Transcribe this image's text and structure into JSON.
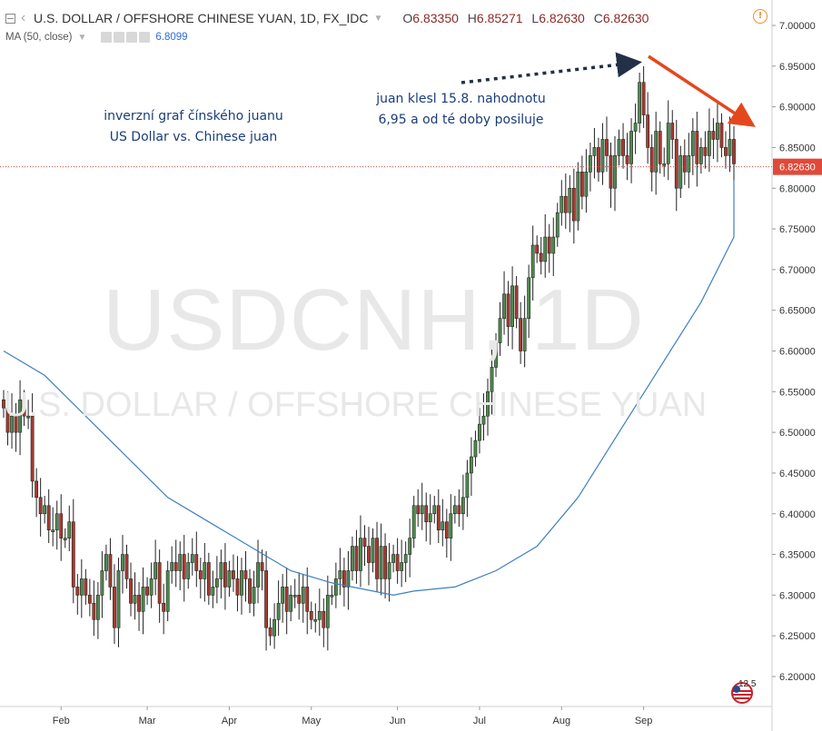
{
  "header": {
    "symbol_title": "U.S. DOLLAR / OFFSHORE CHINESE YUAN, 1D, FX_IDC",
    "ohlc": [
      {
        "label": "O",
        "value": "6.83350"
      },
      {
        "label": "H",
        "value": "6.85271"
      },
      {
        "label": "L",
        "value": "6.82630"
      },
      {
        "label": "C",
        "value": "6.82630"
      }
    ],
    "ma_label": "MA (50, close)",
    "ma_value": "6.8099",
    "info_icon": "info-circle-icon"
  },
  "watermark": {
    "big": "USDCNH, 1D",
    "small": "U.S. DOLLAR / OFFSHORE CHINESE YUAN"
  },
  "annotations": {
    "note_left_line1": "inverzní graf čínského juanu",
    "note_left_line2": "US Dollar vs. Chinese juan",
    "note_right_line1": "juan klesl 15.8. nahodnotu",
    "note_right_line2": "6,95 a od té doby posiluje"
  },
  "logo_text": "12 5",
  "colors": {
    "up": "#4f8a4f",
    "down": "#a93a2f",
    "ma_line": "#3e7fc1",
    "last_price_bg": "#e0493a",
    "arrow_red": "#e5471c",
    "arrow_dark": "#233047",
    "note_text": "#1a3d7a"
  },
  "chart_data": {
    "type": "candlestick",
    "title": "USDCNH, 1D",
    "ylim": [
      6.18,
      7.01
    ],
    "y_ticks": [
      "7.00000",
      "6.95000",
      "6.90000",
      "6.85000",
      "6.80000",
      "6.75000",
      "6.70000",
      "6.65000",
      "6.60000",
      "6.55000",
      "6.50000",
      "6.45000",
      "6.40000",
      "6.35000",
      "6.30000",
      "6.25000",
      "6.20000"
    ],
    "x_labels": [
      "Feb",
      "Mar",
      "Apr",
      "May",
      "Jun",
      "Jul",
      "Aug",
      "Sep"
    ],
    "last_price": "6.82630",
    "closes": [
      6.53,
      6.5,
      6.52,
      6.5,
      6.54,
      6.52,
      6.52,
      6.44,
      6.42,
      6.4,
      6.41,
      6.38,
      6.38,
      6.4,
      6.37,
      6.37,
      6.39,
      6.31,
      6.3,
      6.32,
      6.3,
      6.29,
      6.27,
      6.3,
      6.33,
      6.35,
      6.31,
      6.26,
      6.33,
      6.35,
      6.32,
      6.29,
      6.3,
      6.28,
      6.31,
      6.3,
      6.32,
      6.34,
      6.29,
      6.28,
      6.33,
      6.34,
      6.33,
      6.35,
      6.32,
      6.34,
      6.35,
      6.33,
      6.32,
      6.34,
      6.3,
      6.31,
      6.32,
      6.34,
      6.31,
      6.33,
      6.32,
      6.3,
      6.33,
      6.32,
      6.29,
      6.31,
      6.34,
      6.33,
      6.26,
      6.25,
      6.27,
      6.29,
      6.31,
      6.28,
      6.3,
      6.3,
      6.29,
      6.31,
      6.28,
      6.27,
      6.27,
      6.28,
      6.26,
      6.3,
      6.3,
      6.32,
      6.33,
      6.31,
      6.33,
      6.36,
      6.33,
      6.37,
      6.36,
      6.34,
      6.37,
      6.32,
      6.36,
      6.32,
      6.34,
      6.35,
      6.33,
      6.34,
      6.35,
      6.37,
      6.41,
      6.4,
      6.41,
      6.39,
      6.4,
      6.41,
      6.38,
      6.39,
      6.37,
      6.4,
      6.41,
      6.4,
      6.42,
      6.45,
      6.47,
      6.49,
      6.51,
      6.52,
      6.55,
      6.58,
      6.61,
      6.64,
      6.67,
      6.63,
      6.68,
      6.64,
      6.6,
      6.64,
      6.69,
      6.73,
      6.72,
      6.71,
      6.74,
      6.72,
      6.74,
      6.77,
      6.79,
      6.77,
      6.8,
      6.76,
      6.82,
      6.79,
      6.82,
      6.84,
      6.85,
      6.82,
      6.86,
      6.84,
      6.8,
      6.84,
      6.86,
      6.84,
      6.83,
      6.87,
      6.88,
      6.93,
      6.89,
      6.85,
      6.82,
      6.87,
      6.83,
      6.83,
      6.88,
      6.86,
      6.8,
      6.84,
      6.82,
      6.84,
      6.87,
      6.83,
      6.85,
      6.84,
      6.87,
      6.86,
      6.88,
      6.85,
      6.84,
      6.86,
      6.83
    ],
    "ma50_points": [
      [
        0,
        6.6
      ],
      [
        10,
        6.57
      ],
      [
        20,
        6.52
      ],
      [
        30,
        6.47
      ],
      [
        40,
        6.42
      ],
      [
        50,
        6.39
      ],
      [
        60,
        6.36
      ],
      [
        70,
        6.33
      ],
      [
        80,
        6.315
      ],
      [
        90,
        6.305
      ],
      [
        95,
        6.3
      ],
      [
        100,
        6.305
      ],
      [
        110,
        6.31
      ],
      [
        120,
        6.33
      ],
      [
        130,
        6.36
      ],
      [
        140,
        6.42
      ],
      [
        150,
        6.5
      ],
      [
        160,
        6.58
      ],
      [
        170,
        6.66
      ],
      [
        180,
        6.74
      ],
      [
        190,
        6.79
      ],
      [
        198,
        6.81
      ]
    ]
  }
}
